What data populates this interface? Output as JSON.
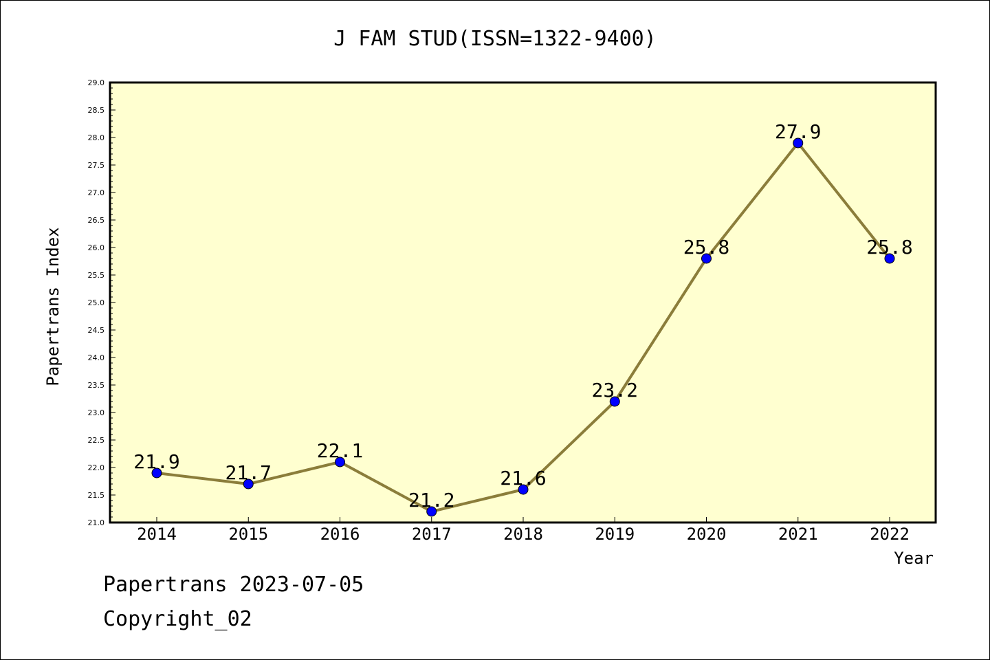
{
  "chart_data": {
    "type": "line",
    "title": "J FAM STUD(ISSN=1322-9400)",
    "xlabel": "Year",
    "ylabel": "Papertrans Index",
    "categories": [
      "2014",
      "2015",
      "2016",
      "2017",
      "2018",
      "2019",
      "2020",
      "2021",
      "2022"
    ],
    "values": [
      21.9,
      21.7,
      22.1,
      21.2,
      21.6,
      23.2,
      25.8,
      27.9,
      25.8
    ],
    "data_labels": [
      "21.9",
      "21.7",
      "22.1",
      "21.2",
      "21.6",
      "23.2",
      "25.8",
      "27.9",
      "25.8"
    ],
    "ylim": [
      21.0,
      29.0
    ],
    "yticks": [
      "21.0",
      "21.5",
      "22.0",
      "22.5",
      "23.0",
      "23.5",
      "24.0",
      "24.5",
      "25.0",
      "25.5",
      "26.0",
      "26.5",
      "27.0",
      "27.5",
      "28.0",
      "28.5",
      "29.0"
    ],
    "grid": false,
    "legend": "none",
    "colors": {
      "plot_background": "#ffffd0",
      "line": "#8b7d3a",
      "marker": "#0000ff"
    }
  },
  "footer": {
    "line1": "Papertrans 2023-07-05",
    "line2": "Copyright_02"
  }
}
